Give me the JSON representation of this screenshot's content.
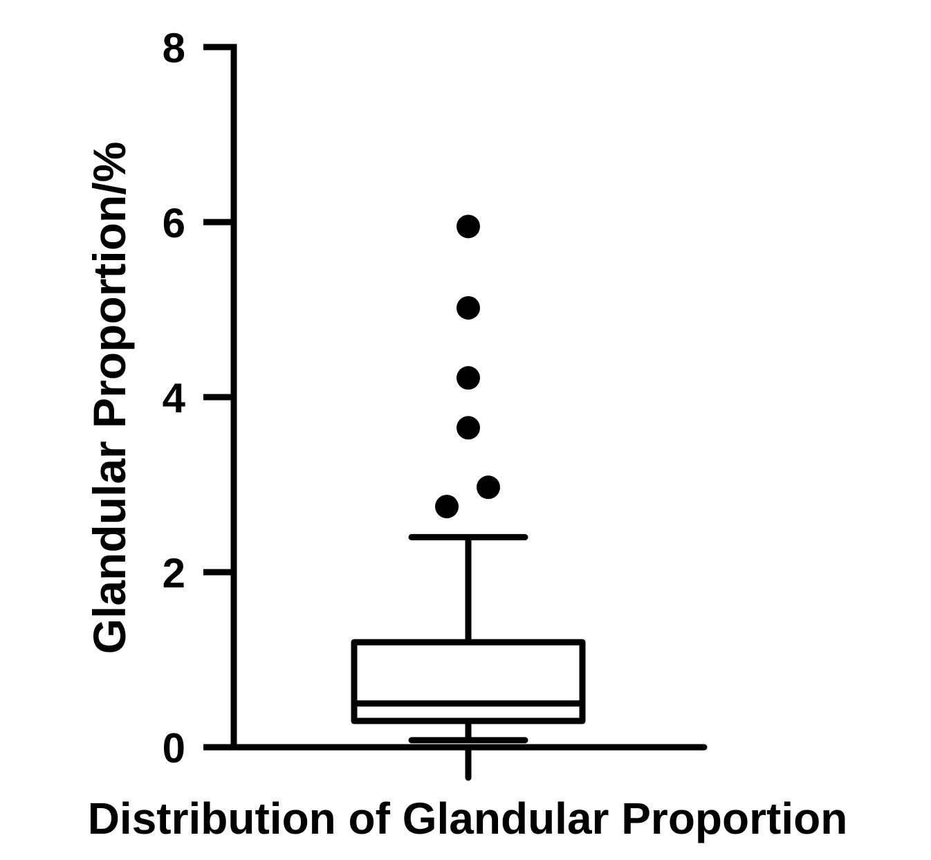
{
  "chart_data": {
    "type": "box",
    "title": "",
    "xlabel": "Distribution of Glandular Proportion",
    "ylabel": "Glandular Proportion/%",
    "ylim": [
      0,
      8
    ],
    "yticks": [
      "0",
      "2",
      "4",
      "6",
      "8"
    ],
    "box": {
      "whisker_low": 0.08,
      "q1": 0.3,
      "median": 0.5,
      "q3": 1.2,
      "whisker_high": 2.4
    },
    "outliers": [
      2.75,
      2.97,
      3.65,
      4.22,
      5.02,
      5.95
    ],
    "grid": false,
    "legend": "none",
    "colors": {
      "ink": "#000000",
      "background": "#ffffff"
    }
  }
}
